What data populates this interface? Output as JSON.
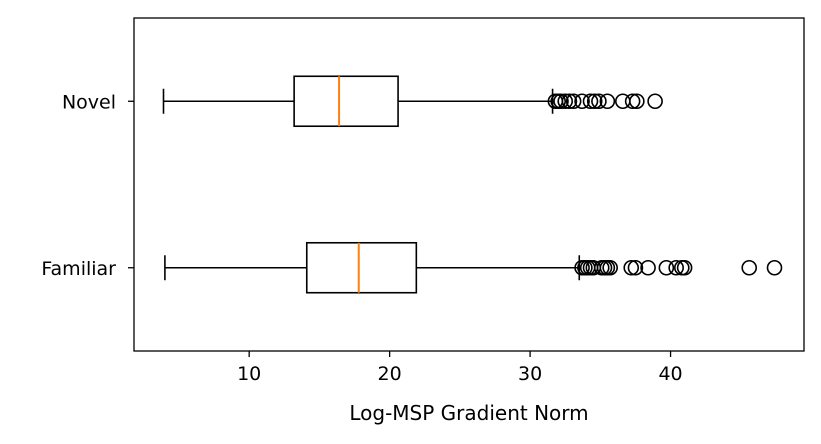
{
  "chart_data": {
    "type": "boxplot",
    "orientation": "horizontal",
    "title": "",
    "xlabel": "Log-MSP Gradient Norm",
    "ylabel": "",
    "xlim": [
      1.8,
      49.5
    ],
    "x_ticks": [
      10,
      20,
      30,
      40
    ],
    "grid": false,
    "legend": "none",
    "categories": [
      "Familiar",
      "Novel"
    ],
    "series": [
      {
        "category": "Familiar",
        "whisker_low": 4.0,
        "q1": 14.1,
        "median": 17.8,
        "q3": 21.9,
        "whisker_high": 33.5,
        "outliers": [
          33.7,
          33.9,
          34.1,
          34.3,
          34.5,
          35.1,
          35.3,
          35.5,
          35.7,
          37.2,
          37.5,
          38.4,
          39.7,
          40.4,
          40.8,
          41.0,
          45.6,
          47.4
        ]
      },
      {
        "category": "Novel",
        "whisker_low": 3.9,
        "q1": 13.2,
        "median": 16.4,
        "q3": 20.6,
        "whisker_high": 31.6,
        "outliers": [
          31.8,
          32.0,
          32.2,
          32.5,
          32.8,
          33.1,
          33.7,
          34.3,
          34.6,
          34.9,
          35.5,
          36.6,
          37.3,
          37.6,
          38.9
        ]
      }
    ],
    "colors": {
      "box": "#000000",
      "median": "#ff7f0e",
      "outlier": "#000000",
      "background": "#ffffff"
    }
  }
}
